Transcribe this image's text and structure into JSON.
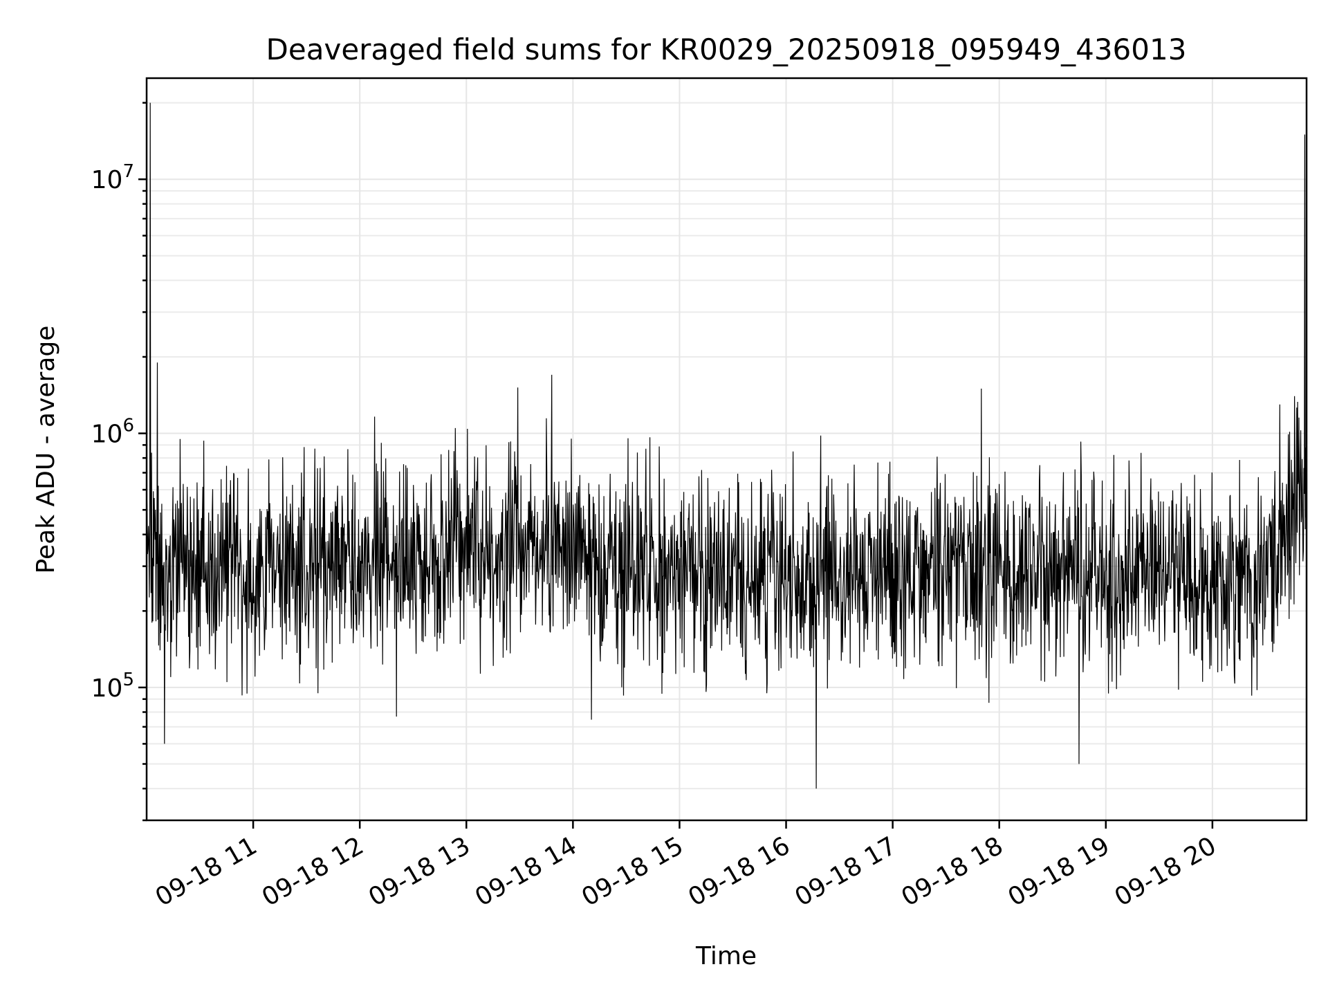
{
  "chart_data": {
    "type": "line",
    "title": "Deaveraged field sums for KR0029_20250918_095949_436013",
    "xlabel": "Time",
    "ylabel": "Peak ADU - average",
    "yscale": "log",
    "ylim": [
      30000,
      25000000
    ],
    "xlim": [
      "2025-09-18 10:00",
      "2025-09-18 20:53"
    ],
    "x_ticks": [
      {
        "x": "2025-09-18 11:00",
        "label": "09-18 11"
      },
      {
        "x": "2025-09-18 12:00",
        "label": "09-18 12"
      },
      {
        "x": "2025-09-18 13:00",
        "label": "09-18 13"
      },
      {
        "x": "2025-09-18 14:00",
        "label": "09-18 14"
      },
      {
        "x": "2025-09-18 15:00",
        "label": "09-18 15"
      },
      {
        "x": "2025-09-18 16:00",
        "label": "09-18 16"
      },
      {
        "x": "2025-09-18 17:00",
        "label": "09-18 17"
      },
      {
        "x": "2025-09-18 18:00",
        "label": "09-18 18"
      },
      {
        "x": "2025-09-18 19:00",
        "label": "09-18 19"
      },
      {
        "x": "2025-09-18 20:00",
        "label": "09-18 20"
      }
    ],
    "y_ticks": [
      {
        "value": 100000,
        "base": "10",
        "exp": "5"
      },
      {
        "value": 1000000,
        "base": "10",
        "exp": "6"
      },
      {
        "value": 10000000,
        "base": "10",
        "exp": "7"
      }
    ],
    "grid": true,
    "series_color": "#000000",
    "series": [
      {
        "points": [
          [
            "2025-09-18 10:00",
            600000
          ],
          [
            "2025-09-18 10:02",
            20000000
          ],
          [
            "2025-09-18 10:04",
            300000
          ],
          [
            "2025-09-18 10:06",
            1900000
          ],
          [
            "2025-09-18 10:10",
            60000
          ],
          [
            "2025-09-18 10:20",
            280000
          ],
          [
            "2025-09-18 10:40",
            300000
          ],
          [
            "2025-09-18 11:00",
            290000
          ],
          [
            "2025-09-18 11:30",
            300000
          ],
          [
            "2025-09-18 12:00",
            310000
          ],
          [
            "2025-09-18 12:30",
            330000
          ],
          [
            "2025-09-18 13:00",
            360000
          ],
          [
            "2025-09-18 13:30",
            340000
          ],
          [
            "2025-09-18 13:48",
            1700000
          ],
          [
            "2025-09-18 14:00",
            320000
          ],
          [
            "2025-09-18 14:30",
            290000
          ],
          [
            "2025-09-18 15:00",
            280000
          ],
          [
            "2025-09-18 15:30",
            270000
          ],
          [
            "2025-09-18 16:00",
            260000
          ],
          [
            "2025-09-18 16:17",
            40000
          ],
          [
            "2025-09-18 16:30",
            270000
          ],
          [
            "2025-09-18 17:00",
            290000
          ],
          [
            "2025-09-18 17:30",
            300000
          ],
          [
            "2025-09-18 17:50",
            1500000
          ],
          [
            "2025-09-18 18:00",
            290000
          ],
          [
            "2025-09-18 18:30",
            280000
          ],
          [
            "2025-09-18 18:45",
            50000
          ],
          [
            "2025-09-18 19:00",
            290000
          ],
          [
            "2025-09-18 19:30",
            280000
          ],
          [
            "2025-09-18 20:00",
            270000
          ],
          [
            "2025-09-18 20:30",
            280000
          ],
          [
            "2025-09-18 20:38",
            1300000
          ],
          [
            "2025-09-18 20:45",
            500000
          ],
          [
            "2025-09-18 20:52",
            15000000
          ]
        ]
      }
    ]
  }
}
